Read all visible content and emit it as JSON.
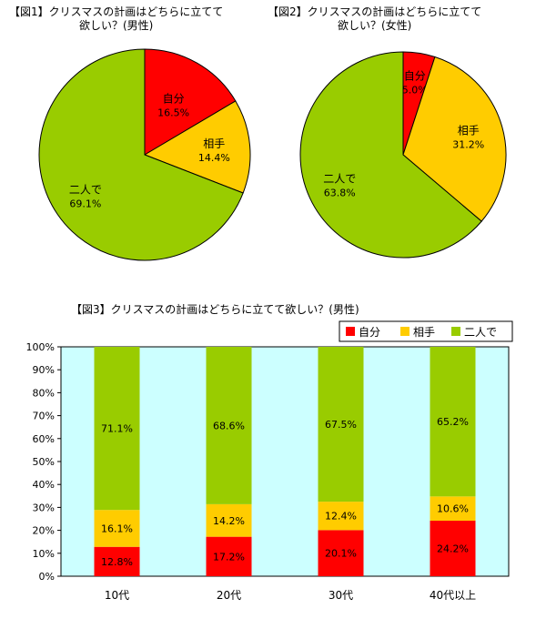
{
  "chart_data": [
    {
      "type": "pie",
      "title_line1": "【図1】クリスマスの計画はどちらに立てて",
      "title_line2": "欲しい？(男性)",
      "slices": [
        {
          "name": "自分",
          "value": 16.5,
          "value_label": "16.5%",
          "color": "#ff0000"
        },
        {
          "name": "相手",
          "value": 14.4,
          "value_label": "14.4%",
          "color": "#ffcc00"
        },
        {
          "name": "二人で",
          "value": 69.1,
          "value_label": "69.1%",
          "color": "#99cc00"
        }
      ]
    },
    {
      "type": "pie",
      "title_line1": "【図2】クリスマスの計画はどちらに立てて",
      "title_line2": "欲しい？(女性)",
      "slices": [
        {
          "name": "自分",
          "value": 5.0,
          "value_label": "5.0%",
          "color": "#ff0000"
        },
        {
          "name": "相手",
          "value": 31.2,
          "value_label": "31.2%",
          "color": "#ffcc00"
        },
        {
          "name": "二人で",
          "value": 63.8,
          "value_label": "63.8%",
          "color": "#99cc00"
        }
      ]
    },
    {
      "type": "bar",
      "stacked": true,
      "title": "【図3】クリスマスの計画はどちらに立てて欲しい？(男性)",
      "categories": [
        "10代",
        "20代",
        "30代",
        "40代以上"
      ],
      "series": [
        {
          "name": "自分",
          "color": "#ff0000",
          "values": [
            12.8,
            17.2,
            20.1,
            24.2
          ],
          "labels": [
            "12.8%",
            "17.2%",
            "20.1%",
            "24.2%"
          ]
        },
        {
          "name": "相手",
          "color": "#ffcc00",
          "values": [
            16.1,
            14.2,
            12.4,
            10.6
          ],
          "labels": [
            "16.1%",
            "14.2%",
            "12.4%",
            "10.6%"
          ]
        },
        {
          "name": "二人で",
          "color": "#99cc00",
          "values": [
            71.1,
            68.6,
            67.5,
            65.2
          ],
          "labels": [
            "71.1%",
            "68.6%",
            "67.5%",
            "65.2%"
          ]
        }
      ],
      "ylim": [
        0,
        100
      ],
      "yticks": [
        "0%",
        "10%",
        "20%",
        "30%",
        "40%",
        "50%",
        "60%",
        "70%",
        "80%",
        "90%",
        "100%"
      ],
      "plot_background": "#ccffff",
      "grid": false,
      "legend": "top-right"
    }
  ]
}
